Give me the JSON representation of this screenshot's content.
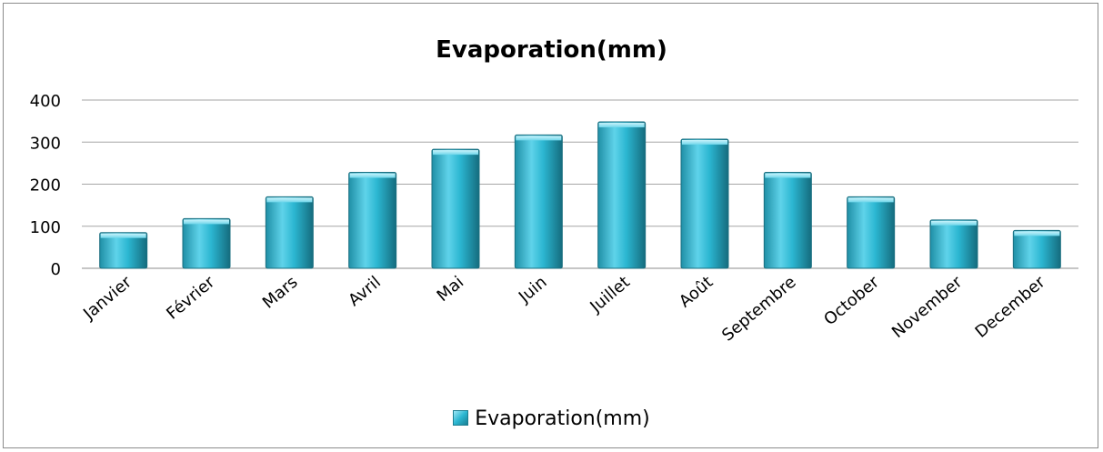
{
  "chart_data": {
    "type": "bar",
    "title": "Evaporation(mm)",
    "xlabel": "",
    "ylabel": "",
    "categories": [
      "Janvier",
      "Février",
      "Mars",
      "Avril",
      "Mai",
      "Juin",
      "Juillet",
      "Août",
      "Septembre",
      "October",
      "November",
      "December"
    ],
    "series": [
      {
        "name": "Evaporation(mm)",
        "values": [
          85,
          118,
          170,
          228,
          283,
          317,
          348,
          307,
          228,
          170,
          115,
          90
        ]
      }
    ],
    "ylim": [
      0,
      400
    ],
    "yticks": [
      "0",
      "100",
      "200",
      "300",
      "400"
    ],
    "grid": true,
    "legend_position": "bottom",
    "bar_color": "#2bb6d1"
  }
}
